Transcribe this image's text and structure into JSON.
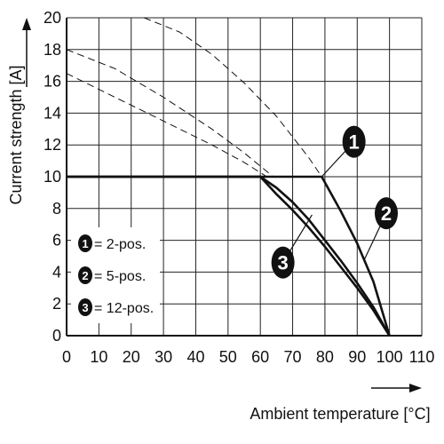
{
  "chart_data": {
    "type": "line",
    "xlabel": "Ambient temperature [°C]",
    "ylabel": "Current strength [A]",
    "xlim": [
      0,
      110
    ],
    "ylim": [
      0,
      20
    ],
    "x_ticks": [
      "0",
      "10",
      "20",
      "30",
      "40",
      "50",
      "60",
      "70",
      "80",
      "90",
      "100",
      "110"
    ],
    "y_ticks": [
      "0",
      "2",
      "4",
      "6",
      "8",
      "10",
      "12",
      "14",
      "16",
      "18",
      "20"
    ],
    "grid": true,
    "legend_position": "bottom-left",
    "legend": [
      {
        "marker": "1",
        "text": "= 2-pos."
      },
      {
        "marker": "2",
        "text": "= 5-pos."
      },
      {
        "marker": "3",
        "text": "= 12-pos."
      }
    ],
    "series": [
      {
        "marker": "1",
        "style": "solid",
        "x": [
          0,
          79,
          85,
          90,
          95,
          100
        ],
        "y": [
          10,
          10,
          7.8,
          5.8,
          3.4,
          0
        ]
      },
      {
        "marker": "2",
        "style": "solid",
        "x": [
          0,
          60,
          65,
          70,
          75,
          80,
          85,
          90,
          95,
          100
        ],
        "y": [
          10,
          10,
          9.3,
          8.4,
          7.3,
          6.0,
          4.7,
          3.3,
          1.8,
          0
        ]
      },
      {
        "marker": "3",
        "style": "solid",
        "x": [
          0,
          60,
          65,
          70,
          75,
          80,
          85,
          90,
          95,
          100
        ],
        "y": [
          10,
          10,
          8.9,
          7.9,
          6.8,
          5.6,
          4.3,
          3.0,
          1.6,
          0
        ]
      },
      {
        "marker": "1",
        "style": "dashed",
        "x": [
          24,
          35,
          45,
          55,
          65,
          75,
          79
        ],
        "y": [
          20,
          19.1,
          17.7,
          15.9,
          13.8,
          11.2,
          10
        ]
      },
      {
        "marker": "2",
        "style": "dashed",
        "x": [
          0,
          15,
          30,
          45,
          55,
          64
        ],
        "y": [
          18,
          16.8,
          15.0,
          13.0,
          11.5,
          10
        ]
      },
      {
        "marker": "3",
        "style": "dashed",
        "x": [
          0,
          15,
          30,
          45,
          55,
          62
        ],
        "y": [
          16.5,
          15.0,
          13.5,
          12.0,
          10.9,
          10
        ]
      }
    ],
    "callouts": [
      {
        "marker": "1",
        "x": 89,
        "y": 12.2,
        "leader_x": 79,
        "leader_y": 10
      },
      {
        "marker": "2",
        "x": 99,
        "y": 7.7,
        "leader_x": 92,
        "leader_y": 4.7
      },
      {
        "marker": "3",
        "x": 67,
        "y": 4.6,
        "leader_x": 76,
        "leader_y": 7.6
      }
    ]
  }
}
